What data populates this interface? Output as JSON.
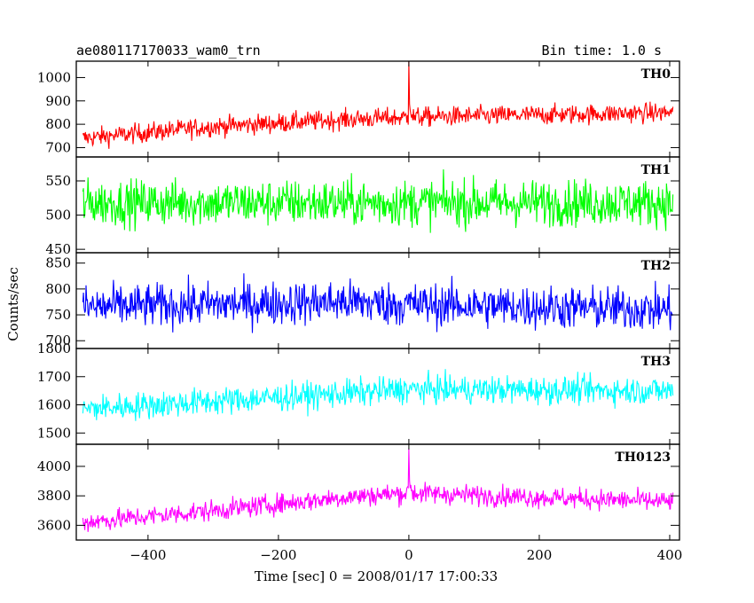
{
  "chart_data": {
    "type": "line",
    "title": "ae080117170033_wam0_trn",
    "bin_time": "Bin time: 1.0 s",
    "xlabel": "Time [sec] 0 = 2008/01/17 17:00:33",
    "ylabel": "Counts/sec",
    "xlim": [
      -510,
      415
    ],
    "x_range": [
      -500,
      405
    ],
    "x_ticks": [
      -400,
      -200,
      0,
      200,
      400
    ],
    "x_tick_labels": [
      "−400",
      "−200",
      "0",
      "200",
      "400"
    ],
    "grid": false,
    "panels": [
      {
        "name": "TH0",
        "color": "#ff0000",
        "ylim": [
          660,
          1070
        ],
        "yticks": [
          700,
          800,
          900,
          1000
        ],
        "ytick_labels": [
          "700",
          "800",
          "900",
          "1000"
        ],
        "trend_x": [
          -500,
          -300,
          -100,
          0,
          400
        ],
        "trend_y": [
          740,
          790,
          820,
          830,
          850
        ],
        "noise": 30,
        "spike_at": 0,
        "spike_peak": 1070
      },
      {
        "name": "TH1",
        "color": "#00ff00",
        "ylim": [
          445,
          585
        ],
        "yticks": [
          450,
          500,
          550
        ],
        "ytick_labels": [
          "450",
          "500",
          "550"
        ],
        "trend_x": [
          -500,
          400
        ],
        "trend_y": [
          518,
          518
        ],
        "noise": 24
      },
      {
        "name": "TH2",
        "color": "#0000ff",
        "ylim": [
          685,
          870
        ],
        "yticks": [
          700,
          750,
          800,
          850
        ],
        "ytick_labels": [
          "700",
          "750",
          "800",
          "850"
        ],
        "trend_x": [
          -500,
          -100,
          0,
          400
        ],
        "trend_y": [
          765,
          775,
          770,
          760
        ],
        "noise": 30
      },
      {
        "name": "TH3",
        "color": "#00ffff",
        "ylim": [
          1460,
          1800
        ],
        "yticks": [
          1500,
          1600,
          1700,
          1800
        ],
        "ytick_labels": [
          "1500",
          "1600",
          "1700",
          "1800"
        ],
        "trend_x": [
          -500,
          -100,
          0,
          400
        ],
        "trend_y": [
          1585,
          1640,
          1655,
          1650
        ],
        "noise": 35
      },
      {
        "name": "TH0123",
        "color": "#ff00ff",
        "ylim": [
          3500,
          4150
        ],
        "yticks": [
          3600,
          3800,
          4000
        ],
        "ytick_labels": [
          "3600",
          "3800",
          "4000"
        ],
        "trend_x": [
          -500,
          -300,
          -100,
          0,
          400
        ],
        "trend_y": [
          3620,
          3700,
          3790,
          3820,
          3760
        ],
        "noise": 50,
        "spike_at": 0,
        "spike_peak": 4120
      }
    ]
  }
}
